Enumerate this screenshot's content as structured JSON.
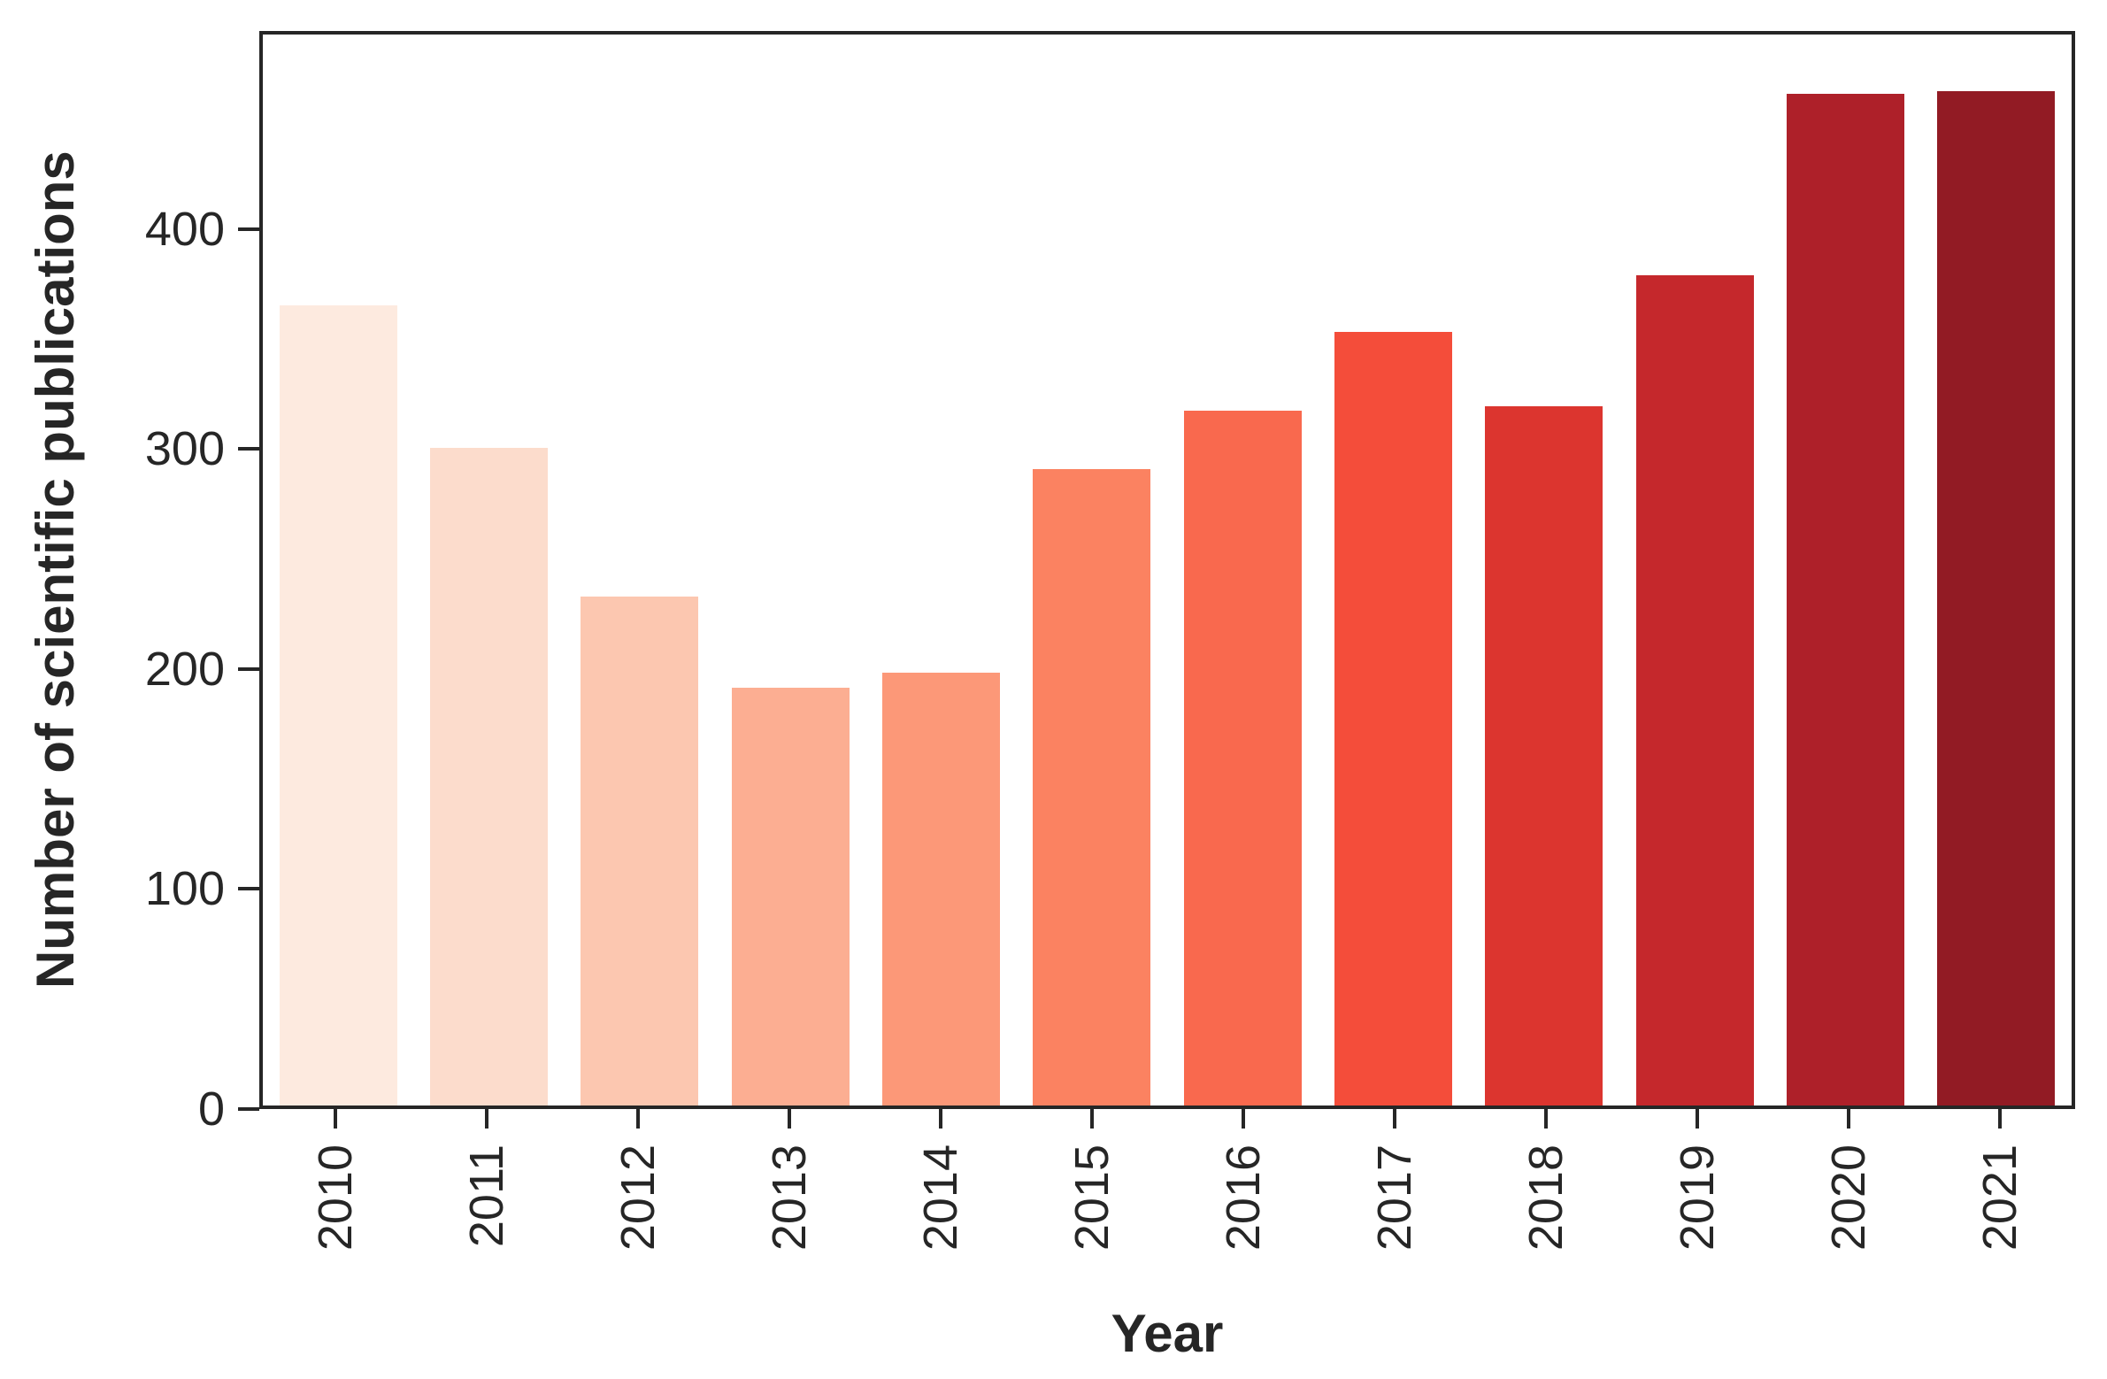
{
  "chart_data": {
    "type": "bar",
    "title": "",
    "xlabel": "Year",
    "ylabel": "Number of scientific publications",
    "categories": [
      "2010",
      "2011",
      "2012",
      "2013",
      "2014",
      "2015",
      "2016",
      "2017",
      "2018",
      "2019",
      "2020",
      "2021"
    ],
    "values": [
      366,
      301,
      233,
      191,
      198,
      291,
      318,
      354,
      320,
      380,
      463,
      464
    ],
    "bar_colors": [
      "#fdeadf",
      "#fcdccc",
      "#fcc7b0",
      "#fcae92",
      "#fc9878",
      "#fb8261",
      "#f9694e",
      "#f44d3a",
      "#dc352f",
      "#c5282c",
      "#ae2029",
      "#921b24"
    ],
    "yticks": [
      0,
      100,
      200,
      300,
      400
    ],
    "ylim": [
      0,
      490
    ],
    "grid": false,
    "legend_position": "none",
    "axis_color": "#262626",
    "background_color": "#ffffff",
    "bar_label_rotation_degrees": 90
  }
}
